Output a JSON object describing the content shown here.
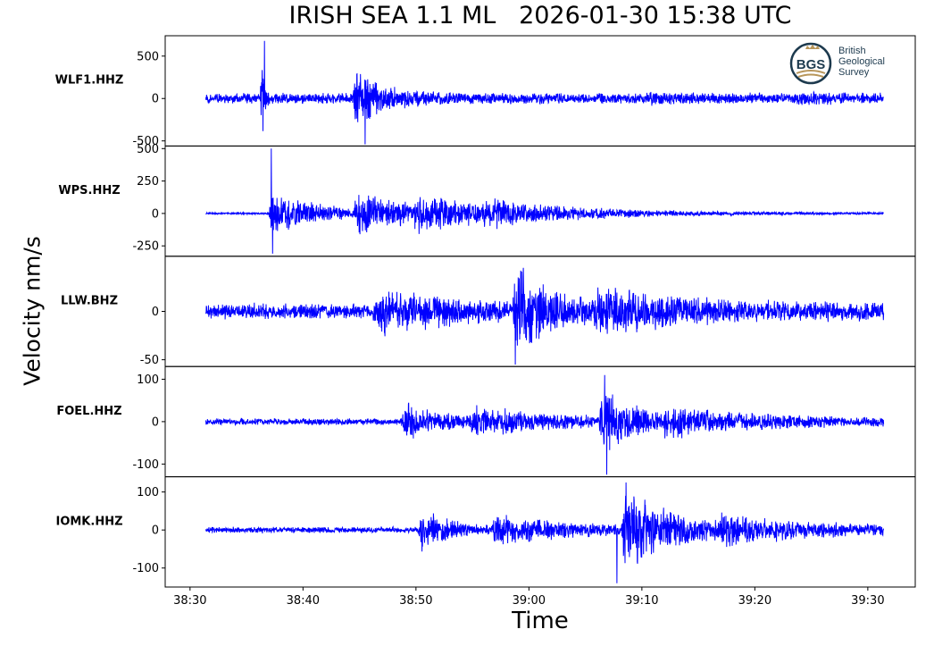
{
  "title": "IRISH SEA 1.1 ML   2026-01-30 15:38 UTC",
  "logo": {
    "text_lines": [
      "British",
      "Geological",
      "Survey"
    ],
    "mark": "BGS",
    "colors": {
      "ring": "#1d3a4e",
      "gold": "#b8965a"
    }
  },
  "chart_data": {
    "type": "line",
    "xlabel": "Time",
    "ylabel": "Velocity nm/s",
    "x_ticks": [
      "38:30",
      "38:40",
      "38:50",
      "39:00",
      "39:10",
      "39:20",
      "39:30"
    ],
    "x_range_seconds": [
      -2.2,
      64.2
    ],
    "trace_time_range_seconds": [
      1.4,
      61.4
    ],
    "line_color": "#0000ff",
    "grid": false,
    "traces": [
      {
        "station": "WLF1.HHZ",
        "ylim": [
          -560,
          740
        ],
        "yticks": [
          {
            "v": 500,
            "label": "500"
          },
          {
            "v": 0,
            "label": "0"
          },
          {
            "v": -500,
            "label": "-500"
          }
        ],
        "noise": 70,
        "events": [
          {
            "t": 6.4,
            "amp": 500,
            "width": 0.25
          },
          {
            "t": 14.7,
            "amp": 340,
            "width": 2.5
          },
          {
            "t": 40.5,
            "amp": 30,
            "width": 3
          },
          {
            "t": 53.8,
            "amp": 40,
            "width": 2
          }
        ],
        "peak_max": 680,
        "peak_max_t": 6.6,
        "peak_min": -540,
        "peak_min_t": 15.5
      },
      {
        "station": "WPS.HHZ",
        "ylim": [
          -330,
          520
        ],
        "yticks": [
          {
            "v": 500,
            "label": "500"
          },
          {
            "v": 250,
            "label": "250"
          },
          {
            "v": 0,
            "label": "0"
          },
          {
            "v": -250,
            "label": "-250"
          }
        ],
        "noise": 8,
        "events": [
          {
            "t": 7.2,
            "amp": 170,
            "width": 5
          },
          {
            "t": 14.8,
            "amp": 160,
            "width": 6
          },
          {
            "t": 20.0,
            "amp": 110,
            "width": 8
          },
          {
            "t": 26.0,
            "amp": 50,
            "width": 10
          }
        ],
        "peak_max": 500,
        "peak_max_t": 7.2,
        "peak_min": -310,
        "peak_min_t": 7.3
      },
      {
        "station": "LLW.BHZ",
        "ylim": [
          -57,
          57
        ],
        "yticks": [
          {
            "v": 0,
            "label": "0"
          },
          {
            "v": -50,
            "label": "-50"
          }
        ],
        "noise": 9,
        "events": [
          {
            "t": 16.5,
            "amp": 22,
            "width": 6
          },
          {
            "t": 28.8,
            "amp": 40,
            "width": 3.5
          },
          {
            "t": 36.0,
            "amp": 16,
            "width": 10
          }
        ],
        "peak_max": 45,
        "peak_max_t": 29.5,
        "peak_min": -55,
        "peak_min_t": 28.8
      },
      {
        "station": "FOEL.HHZ",
        "ylim": [
          -130,
          130
        ],
        "yticks": [
          {
            "v": 100,
            "label": "100"
          },
          {
            "v": 0,
            "label": "0"
          },
          {
            "v": -100,
            "label": "-100"
          }
        ],
        "noise": 9,
        "events": [
          {
            "t": 19.0,
            "amp": 45,
            "width": 3.5
          },
          {
            "t": 25.0,
            "amp": 28,
            "width": 8
          },
          {
            "t": 36.5,
            "amp": 70,
            "width": 3
          },
          {
            "t": 42.0,
            "amp": 25,
            "width": 10
          }
        ],
        "peak_max": 110,
        "peak_max_t": 36.7,
        "peak_min": -125,
        "peak_min_t": 36.9
      },
      {
        "station": "IOMK.HHZ",
        "ylim": [
          -150,
          140
        ],
        "yticks": [
          {
            "v": 100,
            "label": "100"
          },
          {
            "v": 0,
            "label": "0"
          },
          {
            "v": -100,
            "label": "-100"
          }
        ],
        "noise": 9,
        "events": [
          {
            "t": 20.5,
            "amp": 55,
            "width": 2.5
          },
          {
            "t": 27.0,
            "amp": 35,
            "width": 8
          },
          {
            "t": 38.5,
            "amp": 100,
            "width": 4.5
          },
          {
            "t": 47.0,
            "amp": 30,
            "width": 9
          }
        ],
        "peak_max": 125,
        "peak_max_t": 38.6,
        "peak_min": -140,
        "peak_min_t": 37.8
      }
    ]
  }
}
